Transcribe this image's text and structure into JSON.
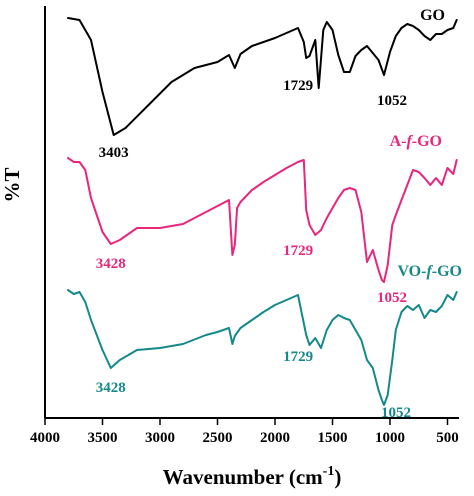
{
  "chart_data": {
    "type": "line",
    "xlabel": "Wavenumber (cm",
    "xlabel_sup": "-1",
    "xlabel_close": ")",
    "ylabel": "%T",
    "xlim": [
      4000,
      400
    ],
    "x_ticks": [
      4000,
      3500,
      3000,
      2500,
      2000,
      1500,
      1000,
      500
    ],
    "grid": false,
    "series": [
      {
        "name": "GO",
        "name_parts": [
          "GO"
        ],
        "color": "#000000",
        "points": [
          [
            3800,
            18
          ],
          [
            3700,
            20
          ],
          [
            3600,
            40
          ],
          [
            3500,
            92
          ],
          [
            3403,
            135
          ],
          [
            3300,
            128
          ],
          [
            3100,
            105
          ],
          [
            2900,
            82
          ],
          [
            2700,
            68
          ],
          [
            2500,
            62
          ],
          [
            2400,
            55
          ],
          [
            2350,
            68
          ],
          [
            2300,
            54
          ],
          [
            2200,
            46
          ],
          [
            2000,
            38
          ],
          [
            1900,
            33
          ],
          [
            1800,
            28
          ],
          [
            1750,
            42
          ],
          [
            1729,
            58
          ],
          [
            1700,
            56
          ],
          [
            1650,
            40
          ],
          [
            1620,
            88
          ],
          [
            1580,
            30
          ],
          [
            1550,
            22
          ],
          [
            1500,
            30
          ],
          [
            1450,
            55
          ],
          [
            1400,
            72
          ],
          [
            1350,
            72
          ],
          [
            1300,
            56
          ],
          [
            1250,
            50
          ],
          [
            1200,
            46
          ],
          [
            1100,
            60
          ],
          [
            1052,
            75
          ],
          [
            1000,
            52
          ],
          [
            950,
            36
          ],
          [
            900,
            28
          ],
          [
            850,
            24
          ],
          [
            800,
            26
          ],
          [
            750,
            30
          ],
          [
            700,
            36
          ],
          [
            650,
            40
          ],
          [
            600,
            34
          ],
          [
            550,
            34
          ],
          [
            500,
            30
          ],
          [
            450,
            28
          ],
          [
            420,
            20
          ]
        ],
        "annotations": [
          {
            "text": "3403",
            "x": 3403
          },
          {
            "text": "1729",
            "x": 1729
          },
          {
            "text": "1052",
            "x": 1052
          }
        ]
      },
      {
        "name": "A-f-GO",
        "name_parts": [
          "A-",
          "f",
          "-GO"
        ],
        "color": "#e8267d",
        "points": [
          [
            3800,
            158
          ],
          [
            3750,
            162
          ],
          [
            3700,
            162
          ],
          [
            3650,
            170
          ],
          [
            3600,
            198
          ],
          [
            3500,
            232
          ],
          [
            3428,
            244
          ],
          [
            3350,
            240
          ],
          [
            3200,
            228
          ],
          [
            3000,
            228
          ],
          [
            2900,
            226
          ],
          [
            2800,
            224
          ],
          [
            2600,
            212
          ],
          [
            2500,
            206
          ],
          [
            2450,
            203
          ],
          [
            2400,
            200
          ],
          [
            2370,
            255
          ],
          [
            2350,
            245
          ],
          [
            2330,
            208
          ],
          [
            2300,
            202
          ],
          [
            2200,
            190
          ],
          [
            2100,
            182
          ],
          [
            2000,
            175
          ],
          [
            1900,
            168
          ],
          [
            1800,
            162
          ],
          [
            1750,
            160
          ],
          [
            1729,
            210
          ],
          [
            1700,
            225
          ],
          [
            1650,
            235
          ],
          [
            1600,
            230
          ],
          [
            1550,
            218
          ],
          [
            1500,
            208
          ],
          [
            1450,
            198
          ],
          [
            1400,
            190
          ],
          [
            1350,
            188
          ],
          [
            1300,
            190
          ],
          [
            1250,
            212
          ],
          [
            1200,
            262
          ],
          [
            1150,
            250
          ],
          [
            1100,
            270
          ],
          [
            1070,
            280
          ],
          [
            1052,
            282
          ],
          [
            1020,
            265
          ],
          [
            980,
            225
          ],
          [
            950,
            215
          ],
          [
            900,
            200
          ],
          [
            850,
            185
          ],
          [
            800,
            170
          ],
          [
            750,
            172
          ],
          [
            700,
            178
          ],
          [
            650,
            185
          ],
          [
            600,
            178
          ],
          [
            550,
            185
          ],
          [
            500,
            168
          ],
          [
            450,
            174
          ],
          [
            420,
            160
          ]
        ],
        "annotations": [
          {
            "text": "3428",
            "x": 3428
          },
          {
            "text": "1729",
            "x": 1729
          },
          {
            "text": "1052",
            "x": 1052
          }
        ]
      },
      {
        "name": "VO-f-GO",
        "name_parts": [
          "VO-",
          "f",
          "-GO"
        ],
        "color": "#15898a",
        "points": [
          [
            3800,
            290
          ],
          [
            3750,
            294
          ],
          [
            3700,
            292
          ],
          [
            3650,
            302
          ],
          [
            3600,
            320
          ],
          [
            3500,
            350
          ],
          [
            3428,
            368
          ],
          [
            3350,
            360
          ],
          [
            3200,
            350
          ],
          [
            3000,
            348
          ],
          [
            2900,
            346
          ],
          [
            2800,
            344
          ],
          [
            2600,
            335
          ],
          [
            2500,
            332
          ],
          [
            2400,
            328
          ],
          [
            2370,
            344
          ],
          [
            2350,
            336
          ],
          [
            2300,
            328
          ],
          [
            2200,
            320
          ],
          [
            2100,
            312
          ],
          [
            2000,
            305
          ],
          [
            1900,
            300
          ],
          [
            1800,
            295
          ],
          [
            1729,
            335
          ],
          [
            1700,
            345
          ],
          [
            1650,
            338
          ],
          [
            1600,
            348
          ],
          [
            1550,
            330
          ],
          [
            1500,
            320
          ],
          [
            1450,
            315
          ],
          [
            1400,
            318
          ],
          [
            1350,
            320
          ],
          [
            1300,
            330
          ],
          [
            1250,
            340
          ],
          [
            1200,
            360
          ],
          [
            1150,
            368
          ],
          [
            1100,
            390
          ],
          [
            1070,
            400
          ],
          [
            1052,
            405
          ],
          [
            1020,
            395
          ],
          [
            980,
            360
          ],
          [
            950,
            330
          ],
          [
            900,
            312
          ],
          [
            850,
            306
          ],
          [
            800,
            310
          ],
          [
            750,
            305
          ],
          [
            700,
            318
          ],
          [
            650,
            310
          ],
          [
            600,
            312
          ],
          [
            550,
            306
          ],
          [
            500,
            295
          ],
          [
            450,
            300
          ],
          [
            420,
            292
          ]
        ],
        "annotations": [
          {
            "text": "3428",
            "x": 3428
          },
          {
            "text": "1729",
            "x": 1729
          },
          {
            "text": "1052",
            "x": 1052
          }
        ]
      }
    ]
  }
}
